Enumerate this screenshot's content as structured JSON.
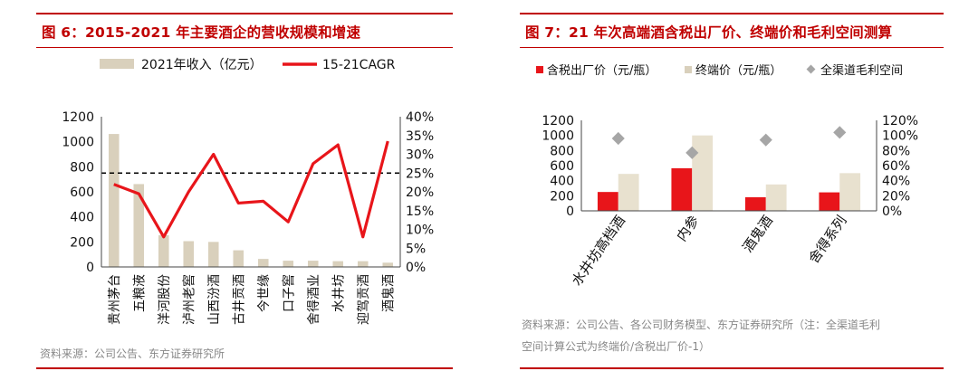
{
  "chart_data": [
    {
      "type": "bar+line",
      "title": "图 6：2015-2021 年主要酒企的营收规模和增速",
      "source": "资料来源：公司公告、东方证券研究所",
      "legend": [
        "2021年收入（亿元）",
        "15-21CAGR"
      ],
      "legend_placement": "top",
      "categories": [
        "贵州茅台",
        "五粮液",
        "洋河股份",
        "泸州老窖",
        "山西汾酒",
        "古井贡酒",
        "今世缘",
        "口子窖",
        "舍得酒业",
        "水井坊",
        "迎驾贡酒",
        "酒鬼酒"
      ],
      "series": [
        {
          "name": "2021年收入（亿元）",
          "kind": "bar",
          "axis": "left",
          "color": "#d9d0bc",
          "values": [
            1062,
            662,
            253,
            206,
            200,
            133,
            64,
            50,
            50,
            46,
            46,
            34
          ]
        },
        {
          "name": "15-21CAGR",
          "kind": "line",
          "axis": "right",
          "color": "#e8151a",
          "values": [
            22.0,
            19.5,
            8.0,
            20.0,
            30.0,
            17.0,
            17.5,
            12.0,
            27.5,
            32.5,
            8.0,
            33.5
          ]
        }
      ],
      "reference_line": {
        "axis": "left",
        "value": 750,
        "style": "dashed",
        "color": "#000000"
      },
      "yleft": {
        "min": 0,
        "max": 1200,
        "ticks": [
          "0",
          "200",
          "400",
          "600",
          "800",
          "1000",
          "1200"
        ]
      },
      "yright": {
        "min": 0,
        "max": 40,
        "ticks": [
          "0%",
          "5%",
          "10%",
          "15%",
          "20%",
          "25%",
          "30%",
          "35%",
          "40%"
        ]
      }
    },
    {
      "type": "bar+scatter",
      "title": "图 7：21 年次高端酒含税出厂价、终端价和毛利空间测算",
      "source_lines": [
        "资料来源：公司公告、各公司财务模型、东方证券研究所（注：全渠道毛利",
        "空间计算公式为终端价/含税出厂价-1）"
      ],
      "legend": [
        "含税出厂价（元/瓶）",
        "终端价（元/瓶）",
        "全渠道毛利空间"
      ],
      "legend_placement": "top",
      "categories": [
        "水井坊高档酒",
        "内参",
        "酒鬼酒",
        "舍得系列"
      ],
      "series": [
        {
          "name": "含税出厂价（元/瓶）",
          "kind": "bar",
          "axis": "left",
          "color": "#e8151a",
          "values": [
            250,
            565,
            180,
            245
          ]
        },
        {
          "name": "终端价（元/瓶）",
          "kind": "bar",
          "axis": "left",
          "color": "#e8e1cf",
          "values": [
            490,
            1000,
            350,
            500
          ]
        },
        {
          "name": "全渠道毛利空间",
          "kind": "scatter",
          "axis": "right",
          "color": "#a6a6a6",
          "values": [
            96,
            77,
            94,
            104
          ]
        }
      ],
      "yleft": {
        "min": 0,
        "max": 1200,
        "ticks": [
          "0",
          "200",
          "400",
          "600",
          "800",
          "1000",
          "1200"
        ]
      },
      "yright": {
        "min": 0,
        "max": 120,
        "ticks": [
          "0%",
          "20%",
          "40%",
          "60%",
          "80%",
          "100%",
          "120%"
        ]
      }
    }
  ]
}
